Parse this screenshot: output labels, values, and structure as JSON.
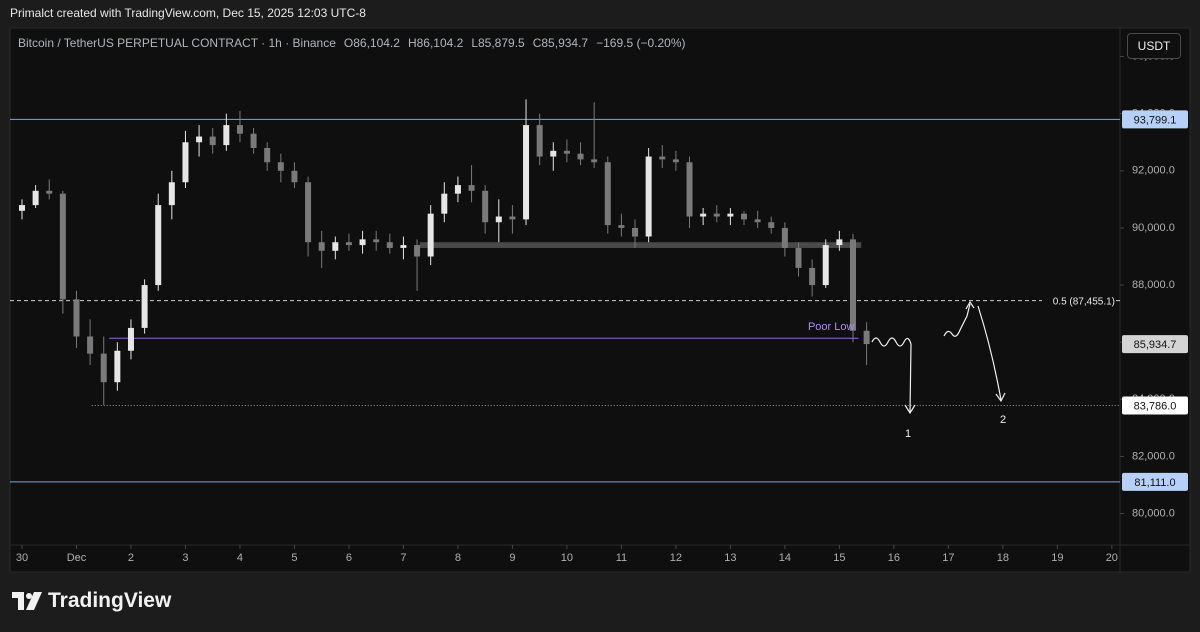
{
  "header": {
    "text": "Primalct created with TradingView.com, Dec 15, 2025 12:03 UTC-8"
  },
  "chart_data": {
    "type": "candlestick",
    "symbol": "Bitcoin / TetherUS PERPETUAL CONTRACT · 1h · Binance",
    "ohlc_labels": [
      "O86,104.2",
      "H86,104.2",
      "L85,879.5",
      "C85,934.7",
      "−169.5 (−0.20%)"
    ],
    "currency": "USDT",
    "up_color": "#e6e6e6",
    "down_color": "#7a7a7a",
    "x": [
      0,
      0.25,
      0.5,
      0.75,
      1,
      1.25,
      1.5,
      1.75,
      2,
      2.25,
      2.5,
      2.75,
      3,
      3.25,
      3.5,
      3.75,
      4,
      4.25,
      4.5,
      4.75,
      5,
      5.25,
      5.5,
      5.75,
      6,
      6.25,
      6.5,
      6.75,
      7,
      7.25,
      7.5,
      7.75,
      8,
      8.25,
      8.5,
      8.75,
      9,
      9.25,
      9.5,
      9.75,
      10,
      10.25,
      10.5,
      10.75,
      11,
      11.25,
      11.5,
      11.75,
      12,
      12.25,
      12.5,
      12.75,
      13,
      13.25,
      13.5,
      13.75,
      14,
      14.25,
      14.5,
      14.75,
      15,
      15.25,
      15.5
    ],
    "candles": [
      [
        90600,
        91000,
        90300,
        90800
      ],
      [
        90800,
        91500,
        90700,
        91300
      ],
      [
        91300,
        91700,
        91000,
        91200
      ],
      [
        91200,
        91300,
        87000,
        87500
      ],
      [
        87500,
        87800,
        85800,
        86200
      ],
      [
        86200,
        86800,
        85200,
        85600
      ],
      [
        85600,
        86200,
        83800,
        84600
      ],
      [
        84600,
        86000,
        84300,
        85700
      ],
      [
        85700,
        86800,
        85400,
        86500
      ],
      [
        86500,
        88200,
        86300,
        88000
      ],
      [
        88000,
        91200,
        87800,
        90800
      ],
      [
        90800,
        92000,
        90300,
        91600
      ],
      [
        91600,
        93400,
        91400,
        93000
      ],
      [
        93000,
        93600,
        92500,
        93200
      ],
      [
        93200,
        93500,
        92600,
        92900
      ],
      [
        92900,
        94000,
        92700,
        93600
      ],
      [
        93600,
        94100,
        93000,
        93300
      ],
      [
        93300,
        93500,
        92600,
        92800
      ],
      [
        92800,
        93000,
        92000,
        92300
      ],
      [
        92300,
        92600,
        91600,
        92000
      ],
      [
        92000,
        92300,
        91400,
        91600
      ],
      [
        91600,
        91800,
        89000,
        89500
      ],
      [
        89500,
        89900,
        88600,
        89200
      ],
      [
        89200,
        89700,
        88900,
        89500
      ],
      [
        89500,
        89800,
        89200,
        89400
      ],
      [
        89400,
        89900,
        89100,
        89600
      ],
      [
        89600,
        89900,
        89200,
        89500
      ],
      [
        89500,
        89800,
        89100,
        89300
      ],
      [
        89300,
        89700,
        88900,
        89400
      ],
      [
        89400,
        89600,
        87800,
        89000
      ],
      [
        89000,
        90800,
        88700,
        90500
      ],
      [
        90500,
        91600,
        90200,
        91200
      ],
      [
        91200,
        91800,
        90900,
        91500
      ],
      [
        91500,
        92200,
        90900,
        91300
      ],
      [
        91300,
        91500,
        89800,
        90200
      ],
      [
        90200,
        91000,
        89500,
        90400
      ],
      [
        90400,
        90800,
        89800,
        90300
      ],
      [
        90300,
        94500,
        90100,
        93600
      ],
      [
        93600,
        94000,
        92200,
        92500
      ],
      [
        92500,
        93000,
        92000,
        92700
      ],
      [
        92700,
        93100,
        92300,
        92600
      ],
      [
        92600,
        93000,
        92200,
        92400
      ],
      [
        92400,
        94400,
        92100,
        92300
      ],
      [
        92300,
        92500,
        89800,
        90100
      ],
      [
        90100,
        90500,
        89700,
        90000
      ],
      [
        90000,
        90300,
        89300,
        89700
      ],
      [
        89700,
        92800,
        89500,
        92500
      ],
      [
        92500,
        92900,
        92100,
        92400
      ],
      [
        92400,
        92700,
        92000,
        92300
      ],
      [
        92300,
        92500,
        90000,
        90400
      ],
      [
        90400,
        90700,
        90100,
        90500
      ],
      [
        90500,
        90800,
        90200,
        90400
      ],
      [
        90400,
        90700,
        90100,
        90500
      ],
      [
        90500,
        90600,
        90100,
        90300
      ],
      [
        90300,
        90600,
        90000,
        90200
      ],
      [
        90200,
        90400,
        89800,
        90000
      ],
      [
        90000,
        90200,
        89000,
        89300
      ],
      [
        89300,
        89500,
        88300,
        88600
      ],
      [
        88600,
        88900,
        87600,
        88000
      ],
      [
        88000,
        89600,
        87900,
        89400
      ],
      [
        89400,
        89900,
        89200,
        89600
      ],
      [
        89600,
        89800,
        86000,
        86400
      ],
      [
        86400,
        86700,
        85200,
        85934.7
      ]
    ],
    "xlim": [
      -0.22,
      20.15
    ],
    "xticks": [
      {
        "value": 0,
        "label": "30"
      },
      {
        "value": 1,
        "label": "Dec"
      },
      2,
      3,
      4,
      5,
      6,
      7,
      8,
      9,
      10,
      11,
      12,
      13,
      14,
      15,
      16,
      17,
      18,
      19,
      20
    ],
    "ylim": [
      78900,
      97000
    ],
    "yticks": [
      {
        "value": 80000,
        "label": "80,000.0"
      },
      {
        "value": 82000,
        "label": "82,000.0"
      },
      {
        "value": 84000,
        "label": "84,000.0"
      },
      {
        "value": 86000,
        "label": "86,000.0"
      },
      {
        "value": 88000,
        "label": "88,000.0"
      },
      {
        "value": 90000,
        "label": "90,000.0"
      },
      {
        "value": 92000,
        "label": "92,000.0"
      },
      {
        "value": 94000,
        "label": "94,000.0"
      },
      {
        "value": 96000,
        "label": "96,000.0"
      }
    ],
    "grid": false,
    "zones": [
      {
        "low": 89300,
        "high": 89500,
        "x_start": 7.3,
        "x_end": 15.4,
        "color": "#4a4a4a"
      }
    ],
    "hlines": [
      {
        "value": 93799.1,
        "label": "93,799.1",
        "color": "#7ea6e0",
        "style": "solid",
        "label_pos": "axis",
        "label_bg": "#b7d0f7"
      },
      {
        "value": 81111.0,
        "label": "81,111.0",
        "color": "#7ea6e0",
        "style": "solid",
        "label_pos": "axis",
        "label_bg": "#b7d0f7"
      },
      {
        "value": 83786.0,
        "label": "83,786.0",
        "color": "#9a9a9a",
        "style": "dotted",
        "label_pos": "axis",
        "label_bg": "#ffffff",
        "x_start": 1.28
      },
      {
        "value": 85934.7,
        "label": "85,934.7",
        "color": "#cfcfcf",
        "style": "none",
        "label_pos": "axis",
        "label_bg": "#d4d4d4"
      },
      {
        "value": 87455.1,
        "label": "0.5 (87,455.1)",
        "color": "#cfcfcf",
        "style": "dashed",
        "label_pos": "inline"
      },
      {
        "value": 86140,
        "label": "Poor Low",
        "color": "#8c6fd6",
        "style": "solid",
        "label_pos": "above",
        "x_start": 1.6,
        "x_end": 15.35
      }
    ],
    "scenario_labels": [
      "1",
      "2"
    ]
  },
  "logo": "TradingView"
}
